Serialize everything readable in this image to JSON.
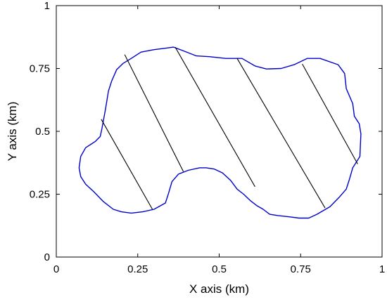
{
  "chart_data": {
    "type": "line",
    "title": "",
    "xlabel": "X axis (km)",
    "ylabel": "Y axis (km)",
    "xlim": [
      0,
      1
    ],
    "ylim": [
      0,
      1
    ],
    "xticks": [
      0,
      0.25,
      0.5,
      0.75,
      1
    ],
    "yticks": [
      0,
      0.25,
      0.5,
      0.75,
      1
    ],
    "xtick_labels": [
      "0",
      "0.25",
      "0.5",
      "0.75",
      "1"
    ],
    "ytick_labels": [
      "0",
      "0.25",
      "0.5",
      "0.75",
      "1"
    ],
    "grid": false,
    "colors": {
      "boundary": "#0000cc",
      "lines": "#000000",
      "frame": "#000000"
    },
    "series": [
      {
        "type": "closed-boundary",
        "points": [
          [
            0.33,
            0.83
          ],
          [
            0.36,
            0.835
          ],
          [
            0.39,
            0.82
          ],
          [
            0.43,
            0.8
          ],
          [
            0.47,
            0.797
          ],
          [
            0.52,
            0.79
          ],
          [
            0.57,
            0.79
          ],
          [
            0.61,
            0.76
          ],
          [
            0.645,
            0.748
          ],
          [
            0.69,
            0.75
          ],
          [
            0.73,
            0.765
          ],
          [
            0.77,
            0.79
          ],
          [
            0.81,
            0.79
          ],
          [
            0.865,
            0.765
          ],
          [
            0.885,
            0.73
          ],
          [
            0.89,
            0.67
          ],
          [
            0.91,
            0.61
          ],
          [
            0.915,
            0.56
          ],
          [
            0.93,
            0.53
          ],
          [
            0.935,
            0.49
          ],
          [
            0.932,
            0.4
          ],
          [
            0.91,
            0.355
          ],
          [
            0.9,
            0.31
          ],
          [
            0.89,
            0.27
          ],
          [
            0.87,
            0.24
          ],
          [
            0.84,
            0.2
          ],
          [
            0.8,
            0.17
          ],
          [
            0.775,
            0.155
          ],
          [
            0.745,
            0.155
          ],
          [
            0.715,
            0.16
          ],
          [
            0.68,
            0.165
          ],
          [
            0.655,
            0.17
          ],
          [
            0.635,
            0.19
          ],
          [
            0.615,
            0.205
          ],
          [
            0.595,
            0.225
          ],
          [
            0.575,
            0.25
          ],
          [
            0.555,
            0.27
          ],
          [
            0.535,
            0.305
          ],
          [
            0.51,
            0.335
          ],
          [
            0.485,
            0.35
          ],
          [
            0.46,
            0.355
          ],
          [
            0.44,
            0.355
          ],
          [
            0.405,
            0.345
          ],
          [
            0.375,
            0.33
          ],
          [
            0.355,
            0.3
          ],
          [
            0.345,
            0.255
          ],
          [
            0.335,
            0.215
          ],
          [
            0.3,
            0.19
          ],
          [
            0.265,
            0.18
          ],
          [
            0.23,
            0.175
          ],
          [
            0.2,
            0.18
          ],
          [
            0.175,
            0.19
          ],
          [
            0.145,
            0.22
          ],
          [
            0.115,
            0.26
          ],
          [
            0.09,
            0.29
          ],
          [
            0.075,
            0.32
          ],
          [
            0.07,
            0.355
          ],
          [
            0.075,
            0.4
          ],
          [
            0.09,
            0.435
          ],
          [
            0.12,
            0.46
          ],
          [
            0.135,
            0.48
          ],
          [
            0.14,
            0.51
          ],
          [
            0.145,
            0.545
          ],
          [
            0.15,
            0.58
          ],
          [
            0.155,
            0.62
          ],
          [
            0.16,
            0.66
          ],
          [
            0.17,
            0.7
          ],
          [
            0.185,
            0.745
          ],
          [
            0.205,
            0.77
          ],
          [
            0.23,
            0.79
          ],
          [
            0.26,
            0.815
          ],
          [
            0.3,
            0.825
          ]
        ]
      },
      {
        "type": "segments",
        "lines": [
          [
            [
              0.138,
              0.548
            ],
            [
              0.295,
              0.19
            ]
          ],
          [
            [
              0.21,
              0.805
            ],
            [
              0.39,
              0.34
            ]
          ],
          [
            [
              0.365,
              0.835
            ],
            [
              0.61,
              0.28
            ]
          ],
          [
            [
              0.555,
              0.79
            ],
            [
              0.825,
              0.195
            ]
          ],
          [
            [
              0.755,
              0.768
            ],
            [
              0.925,
              0.37
            ]
          ]
        ]
      }
    ]
  }
}
